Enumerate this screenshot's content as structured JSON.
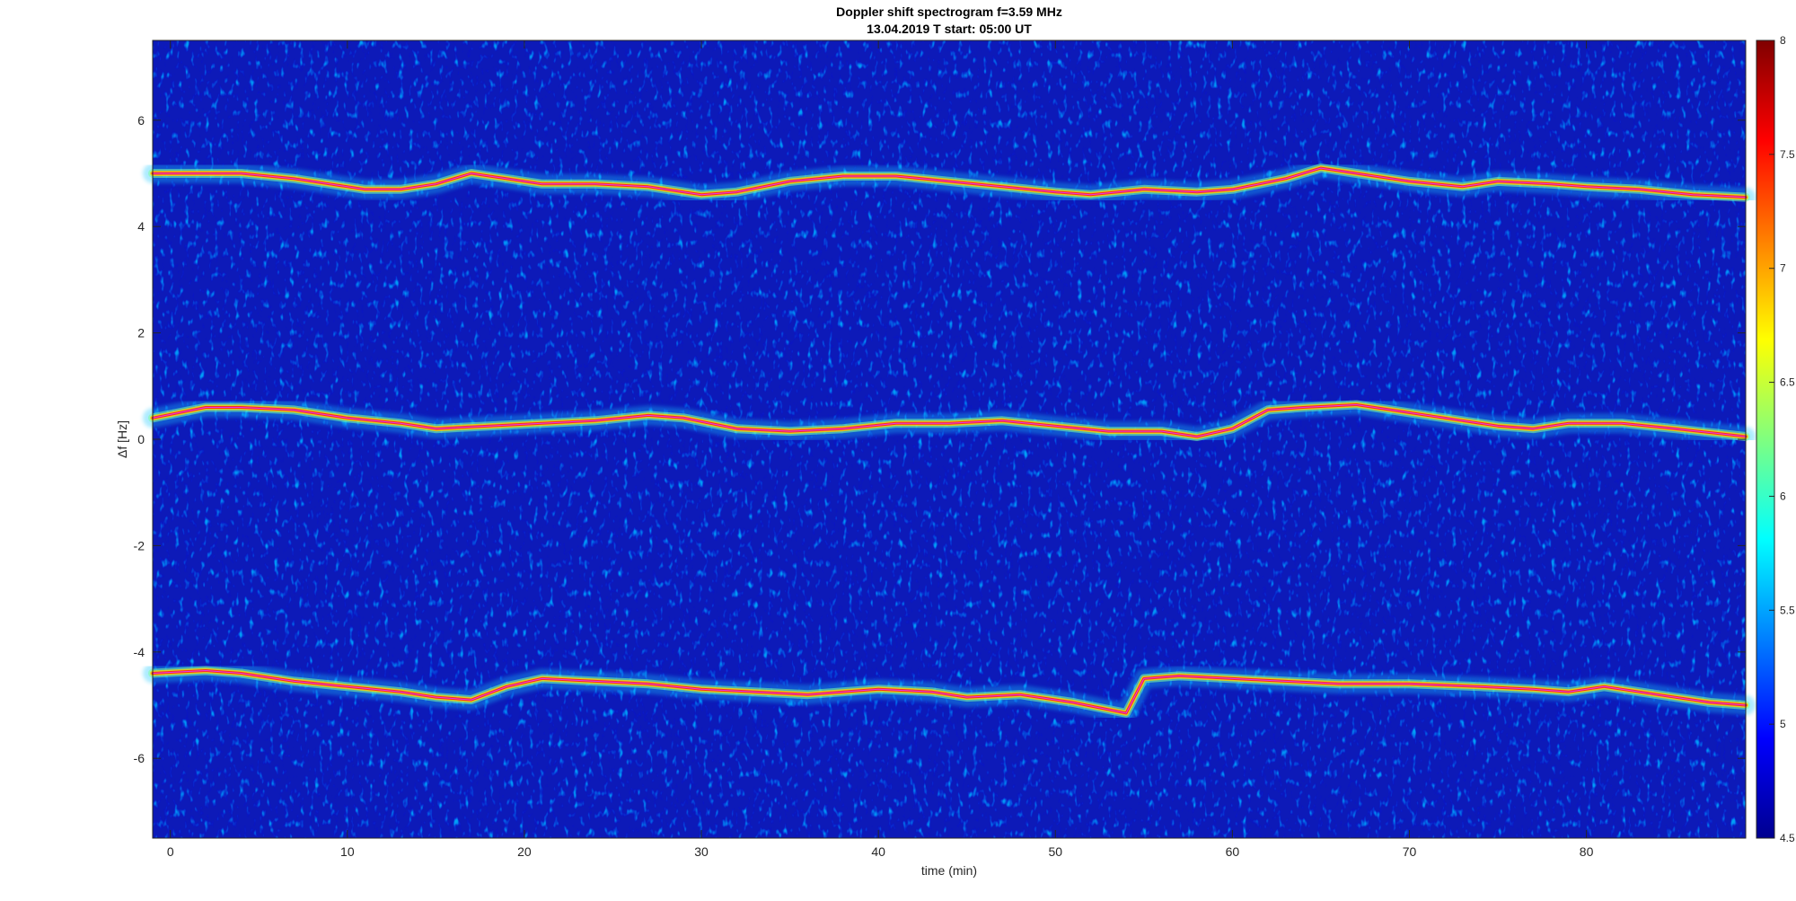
{
  "chart_data": {
    "type": "heatmap",
    "title": "Doppler shift spectrogram f=3.59 MHz",
    "subtitle": "13.04.2019   T start: 05:00 UT",
    "xlabel": "time (min)",
    "ylabel": "Δf [Hz]",
    "xlim": [
      -1,
      89
    ],
    "ylim": [
      -7.5,
      7.5
    ],
    "xticks": [
      0,
      10,
      20,
      30,
      40,
      50,
      60,
      70,
      80
    ],
    "xtick_labels": [
      "0",
      "10",
      "20",
      "30",
      "40",
      "50",
      "60",
      "70",
      "80"
    ],
    "yticks": [
      6,
      4,
      2,
      0,
      -2,
      -4,
      -6
    ],
    "ytick_labels": [
      "6",
      "4",
      "2",
      "0",
      "-2",
      "-4",
      "-6"
    ],
    "colorbar": {
      "range": [
        4.5,
        8
      ],
      "ticks": [
        8,
        7.5,
        7,
        6.5,
        6,
        5.5,
        5,
        4.5
      ],
      "tick_labels": [
        "8",
        "7.5",
        "7",
        "6.5",
        "6",
        "5.5",
        "5",
        "4.5"
      ],
      "colormap": "jet"
    },
    "grid": false,
    "series": [
      {
        "x": [
          -1,
          2,
          4,
          7,
          9,
          11,
          13,
          15,
          17,
          19,
          21,
          24,
          27,
          30,
          32,
          35,
          38,
          41,
          44,
          47,
          50,
          52,
          55,
          58,
          60,
          63,
          65,
          67,
          70,
          73,
          75,
          78,
          80,
          83,
          86,
          89
        ],
        "y": [
          5.0,
          5.0,
          5.0,
          4.9,
          4.8,
          4.7,
          4.7,
          4.8,
          5.0,
          4.9,
          4.8,
          4.8,
          4.75,
          4.6,
          4.65,
          4.85,
          4.95,
          4.95,
          4.85,
          4.75,
          4.65,
          4.6,
          4.7,
          4.65,
          4.7,
          4.9,
          5.1,
          5.0,
          4.85,
          4.75,
          4.85,
          4.8,
          4.75,
          4.7,
          4.6,
          4.55
        ]
      },
      {
        "x": [
          -1,
          2,
          4,
          7,
          10,
          13,
          15,
          18,
          21,
          24,
          27,
          29,
          32,
          35,
          38,
          41,
          44,
          47,
          50,
          53,
          56,
          58,
          60,
          62,
          64,
          67,
          70,
          73,
          75,
          77,
          79,
          82,
          85,
          89
        ],
        "y": [
          0.4,
          0.6,
          0.6,
          0.55,
          0.4,
          0.3,
          0.2,
          0.25,
          0.3,
          0.35,
          0.45,
          0.4,
          0.2,
          0.15,
          0.2,
          0.3,
          0.3,
          0.35,
          0.25,
          0.15,
          0.15,
          0.05,
          0.2,
          0.55,
          0.6,
          0.65,
          0.5,
          0.35,
          0.25,
          0.2,
          0.3,
          0.3,
          0.2,
          0.05
        ]
      },
      {
        "x": [
          -1,
          2,
          4,
          7,
          10,
          13,
          15,
          17,
          19,
          21,
          24,
          27,
          30,
          33,
          36,
          40,
          43,
          45,
          48,
          51,
          54,
          55,
          57,
          60,
          63,
          66,
          70,
          74,
          77,
          79,
          81,
          84,
          87,
          89
        ],
        "y": [
          -4.4,
          -4.35,
          -4.4,
          -4.55,
          -4.65,
          -4.75,
          -4.85,
          -4.9,
          -4.65,
          -4.5,
          -4.55,
          -4.6,
          -4.7,
          -4.75,
          -4.8,
          -4.7,
          -4.75,
          -4.85,
          -4.8,
          -4.95,
          -5.15,
          -4.5,
          -4.45,
          -4.5,
          -4.55,
          -4.6,
          -4.6,
          -4.65,
          -4.7,
          -4.75,
          -4.65,
          -4.8,
          -4.95,
          -5.0
        ]
      }
    ]
  }
}
